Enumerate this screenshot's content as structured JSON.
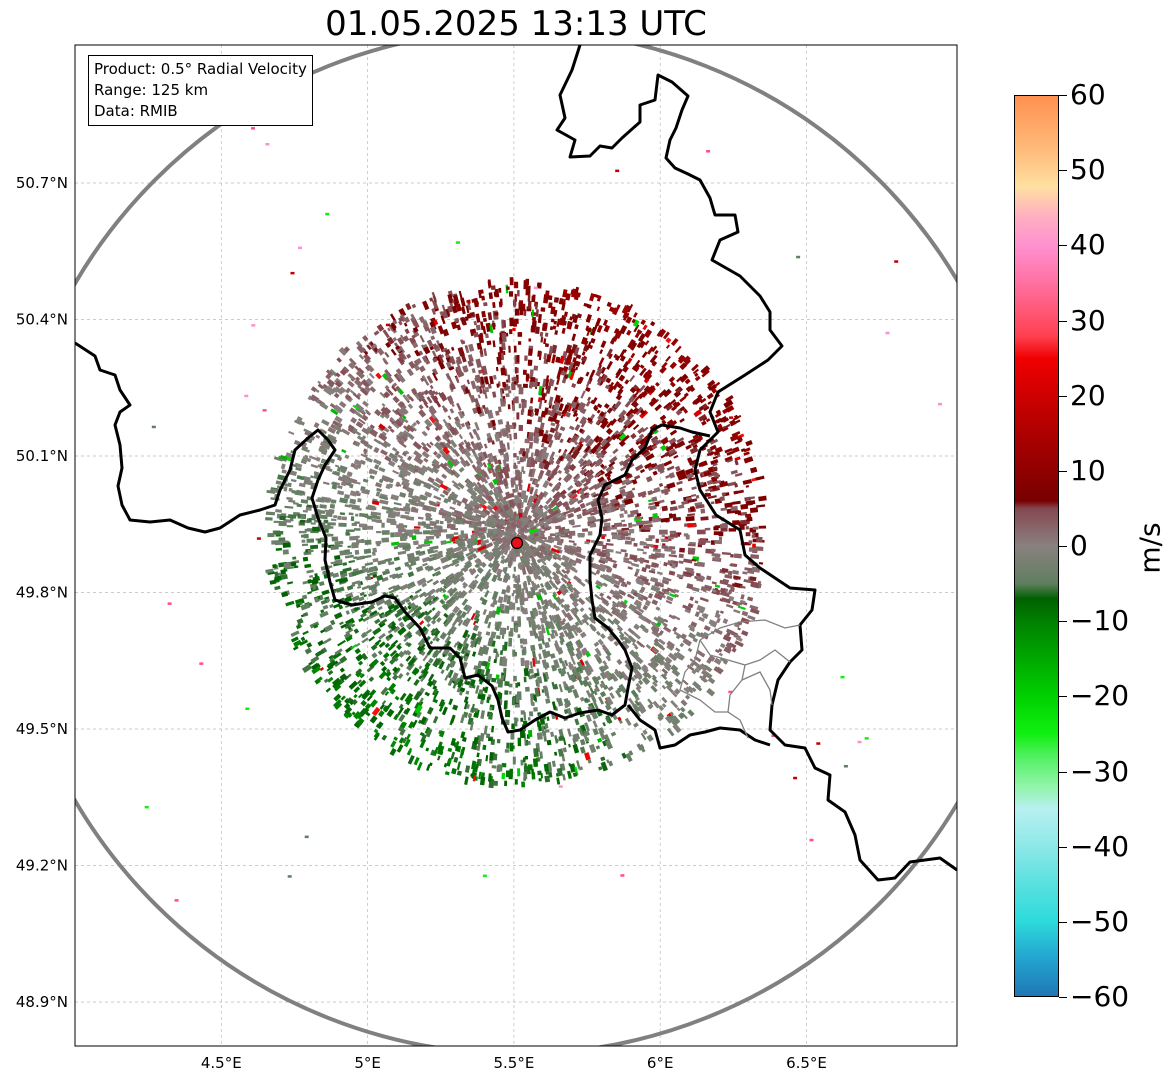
{
  "title": "01.05.2025 13:13 UTC",
  "info": {
    "product": "Product: 0.5° Radial Velocity",
    "range": "Range: 125 km",
    "source": "Data: RMIB"
  },
  "map": {
    "lon_range": [
      4.0,
      7.0
    ],
    "lat_range": [
      48.8,
      51.0
    ],
    "x_ticks": [
      "4.5°E",
      "5°E",
      "5.5°E",
      "6°E",
      "6.5°E"
    ],
    "x_tick_values": [
      4.5,
      5.0,
      5.5,
      6.0,
      6.5
    ],
    "y_ticks": [
      "50.7°N",
      "50.4°N",
      "50.1°N",
      "49.8°N",
      "49.5°N",
      "49.2°N",
      "48.9°N"
    ],
    "y_tick_values": [
      50.7,
      50.4,
      50.1,
      49.8,
      49.5,
      49.2,
      48.9
    ],
    "radar_site": {
      "lon": 5.5,
      "lat": 49.914
    },
    "range_km": 125
  },
  "colorbar": {
    "label": "m/s",
    "min": -60,
    "max": 60,
    "ticks": [
      "60",
      "50",
      "40",
      "30",
      "20",
      "10",
      "0",
      "−10",
      "−20",
      "−30",
      "−40",
      "−50",
      "−60"
    ],
    "tick_values": [
      60,
      50,
      40,
      30,
      20,
      10,
      0,
      -10,
      -20,
      -30,
      -40,
      -50,
      -60
    ]
  },
  "colors": {
    "range_ring": "#808080",
    "border": "#000000",
    "site_marker": "#e8101a"
  }
}
